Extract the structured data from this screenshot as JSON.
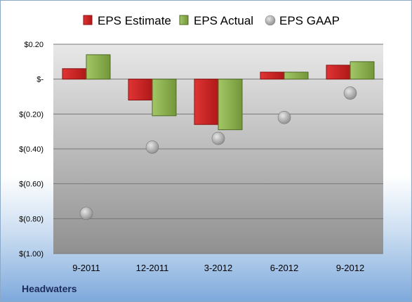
{
  "company": "Headwaters",
  "chart_data": {
    "type": "bar",
    "categories": [
      "9-2011",
      "12-2011",
      "3-2012",
      "6-2012",
      "9-2012"
    ],
    "series": [
      {
        "name": "EPS Estimate",
        "type": "bar",
        "color": "#cc2222",
        "values": [
          0.06,
          -0.12,
          -0.26,
          0.04,
          0.08
        ]
      },
      {
        "name": "EPS Actual",
        "type": "bar",
        "color": "#8bb04a",
        "values": [
          0.14,
          -0.21,
          -0.29,
          0.04,
          0.1
        ]
      },
      {
        "name": "EPS GAAP",
        "type": "scatter",
        "color": "#a8a8a8",
        "values": [
          -0.77,
          -0.39,
          -0.34,
          -0.22,
          -0.08
        ]
      }
    ],
    "ylim": [
      -1.0,
      0.2
    ],
    "y_ticks": [
      0.2,
      0,
      -0.2,
      -0.4,
      -0.6,
      -0.8,
      -1.0
    ],
    "y_tick_labels": [
      "$0.20",
      "$-",
      "$(0.20)",
      "$(0.40)",
      "$(0.60)",
      "$(0.80)",
      "$(1.00)"
    ],
    "grid": true,
    "legend_position": "top"
  }
}
